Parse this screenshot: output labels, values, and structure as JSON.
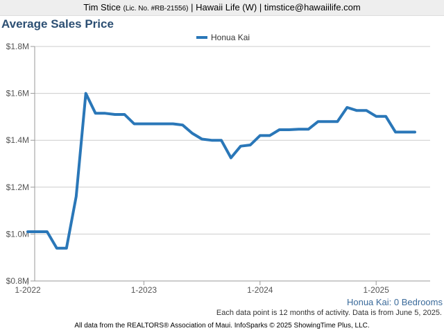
{
  "header": {
    "name": "Tim Stice",
    "license": "(Lic. No. #RB-21556)",
    "rest": "| Hawaii Life (W) | timstice@hawaiilife.com"
  },
  "footer": {
    "series_label": "Honua Kai: 0 Bedrooms",
    "note": "Each data point is 12 months of activity. Data is from June 5, 2025.",
    "credit": "All data from the REALTORS® Association of Maui. InfoSparks © 2025 ShowingTime Plus, LLC."
  },
  "chart_data": {
    "type": "line",
    "title": "Average Sales Price",
    "xlabel": "",
    "ylabel": "",
    "legend_position": "top-center",
    "grid": true,
    "ylim": [
      800000,
      1800000
    ],
    "xlim": [
      "2022-01",
      "2025-05"
    ],
    "y_ticks": [
      {
        "value": 800000,
        "label": "$0.8M"
      },
      {
        "value": 1000000,
        "label": "$1.0M"
      },
      {
        "value": 1200000,
        "label": "$1.2M"
      },
      {
        "value": 1400000,
        "label": "$1.4M"
      },
      {
        "value": 1600000,
        "label": "$1.6M"
      },
      {
        "value": 1800000,
        "label": "$1.8M"
      }
    ],
    "x_ticks": [
      {
        "value": "2022-01",
        "label": "1-2022"
      },
      {
        "value": "2023-01",
        "label": "1-2023"
      },
      {
        "value": "2024-01",
        "label": "1-2024"
      },
      {
        "value": "2025-01",
        "label": "1-2025"
      }
    ],
    "series": [
      {
        "name": "Honua Kai",
        "color": "#2a77b8",
        "x": [
          "2022-01",
          "2022-02",
          "2022-03",
          "2022-04",
          "2022-05",
          "2022-06",
          "2022-07",
          "2022-08",
          "2022-09",
          "2022-10",
          "2022-11",
          "2022-12",
          "2023-01",
          "2023-02",
          "2023-03",
          "2023-04",
          "2023-05",
          "2023-06",
          "2023-07",
          "2023-08",
          "2023-09",
          "2023-10",
          "2023-11",
          "2023-12",
          "2024-01",
          "2024-02",
          "2024-03",
          "2024-04",
          "2024-05",
          "2024-06",
          "2024-07",
          "2024-08",
          "2024-09",
          "2024-10",
          "2024-11",
          "2024-12",
          "2025-01",
          "2025-02",
          "2025-03",
          "2025-04",
          "2025-05"
        ],
        "values": [
          1010000,
          1010000,
          1010000,
          940000,
          940000,
          1160000,
          1600000,
          1515000,
          1515000,
          1510000,
          1510000,
          1470000,
          1470000,
          1470000,
          1470000,
          1470000,
          1465000,
          1430000,
          1405000,
          1400000,
          1400000,
          1325000,
          1375000,
          1380000,
          1420000,
          1420000,
          1445000,
          1445000,
          1447000,
          1447000,
          1480000,
          1480000,
          1480000,
          1540000,
          1527000,
          1527000,
          1502000,
          1502000,
          1435000,
          1435000,
          1435000
        ]
      }
    ]
  }
}
